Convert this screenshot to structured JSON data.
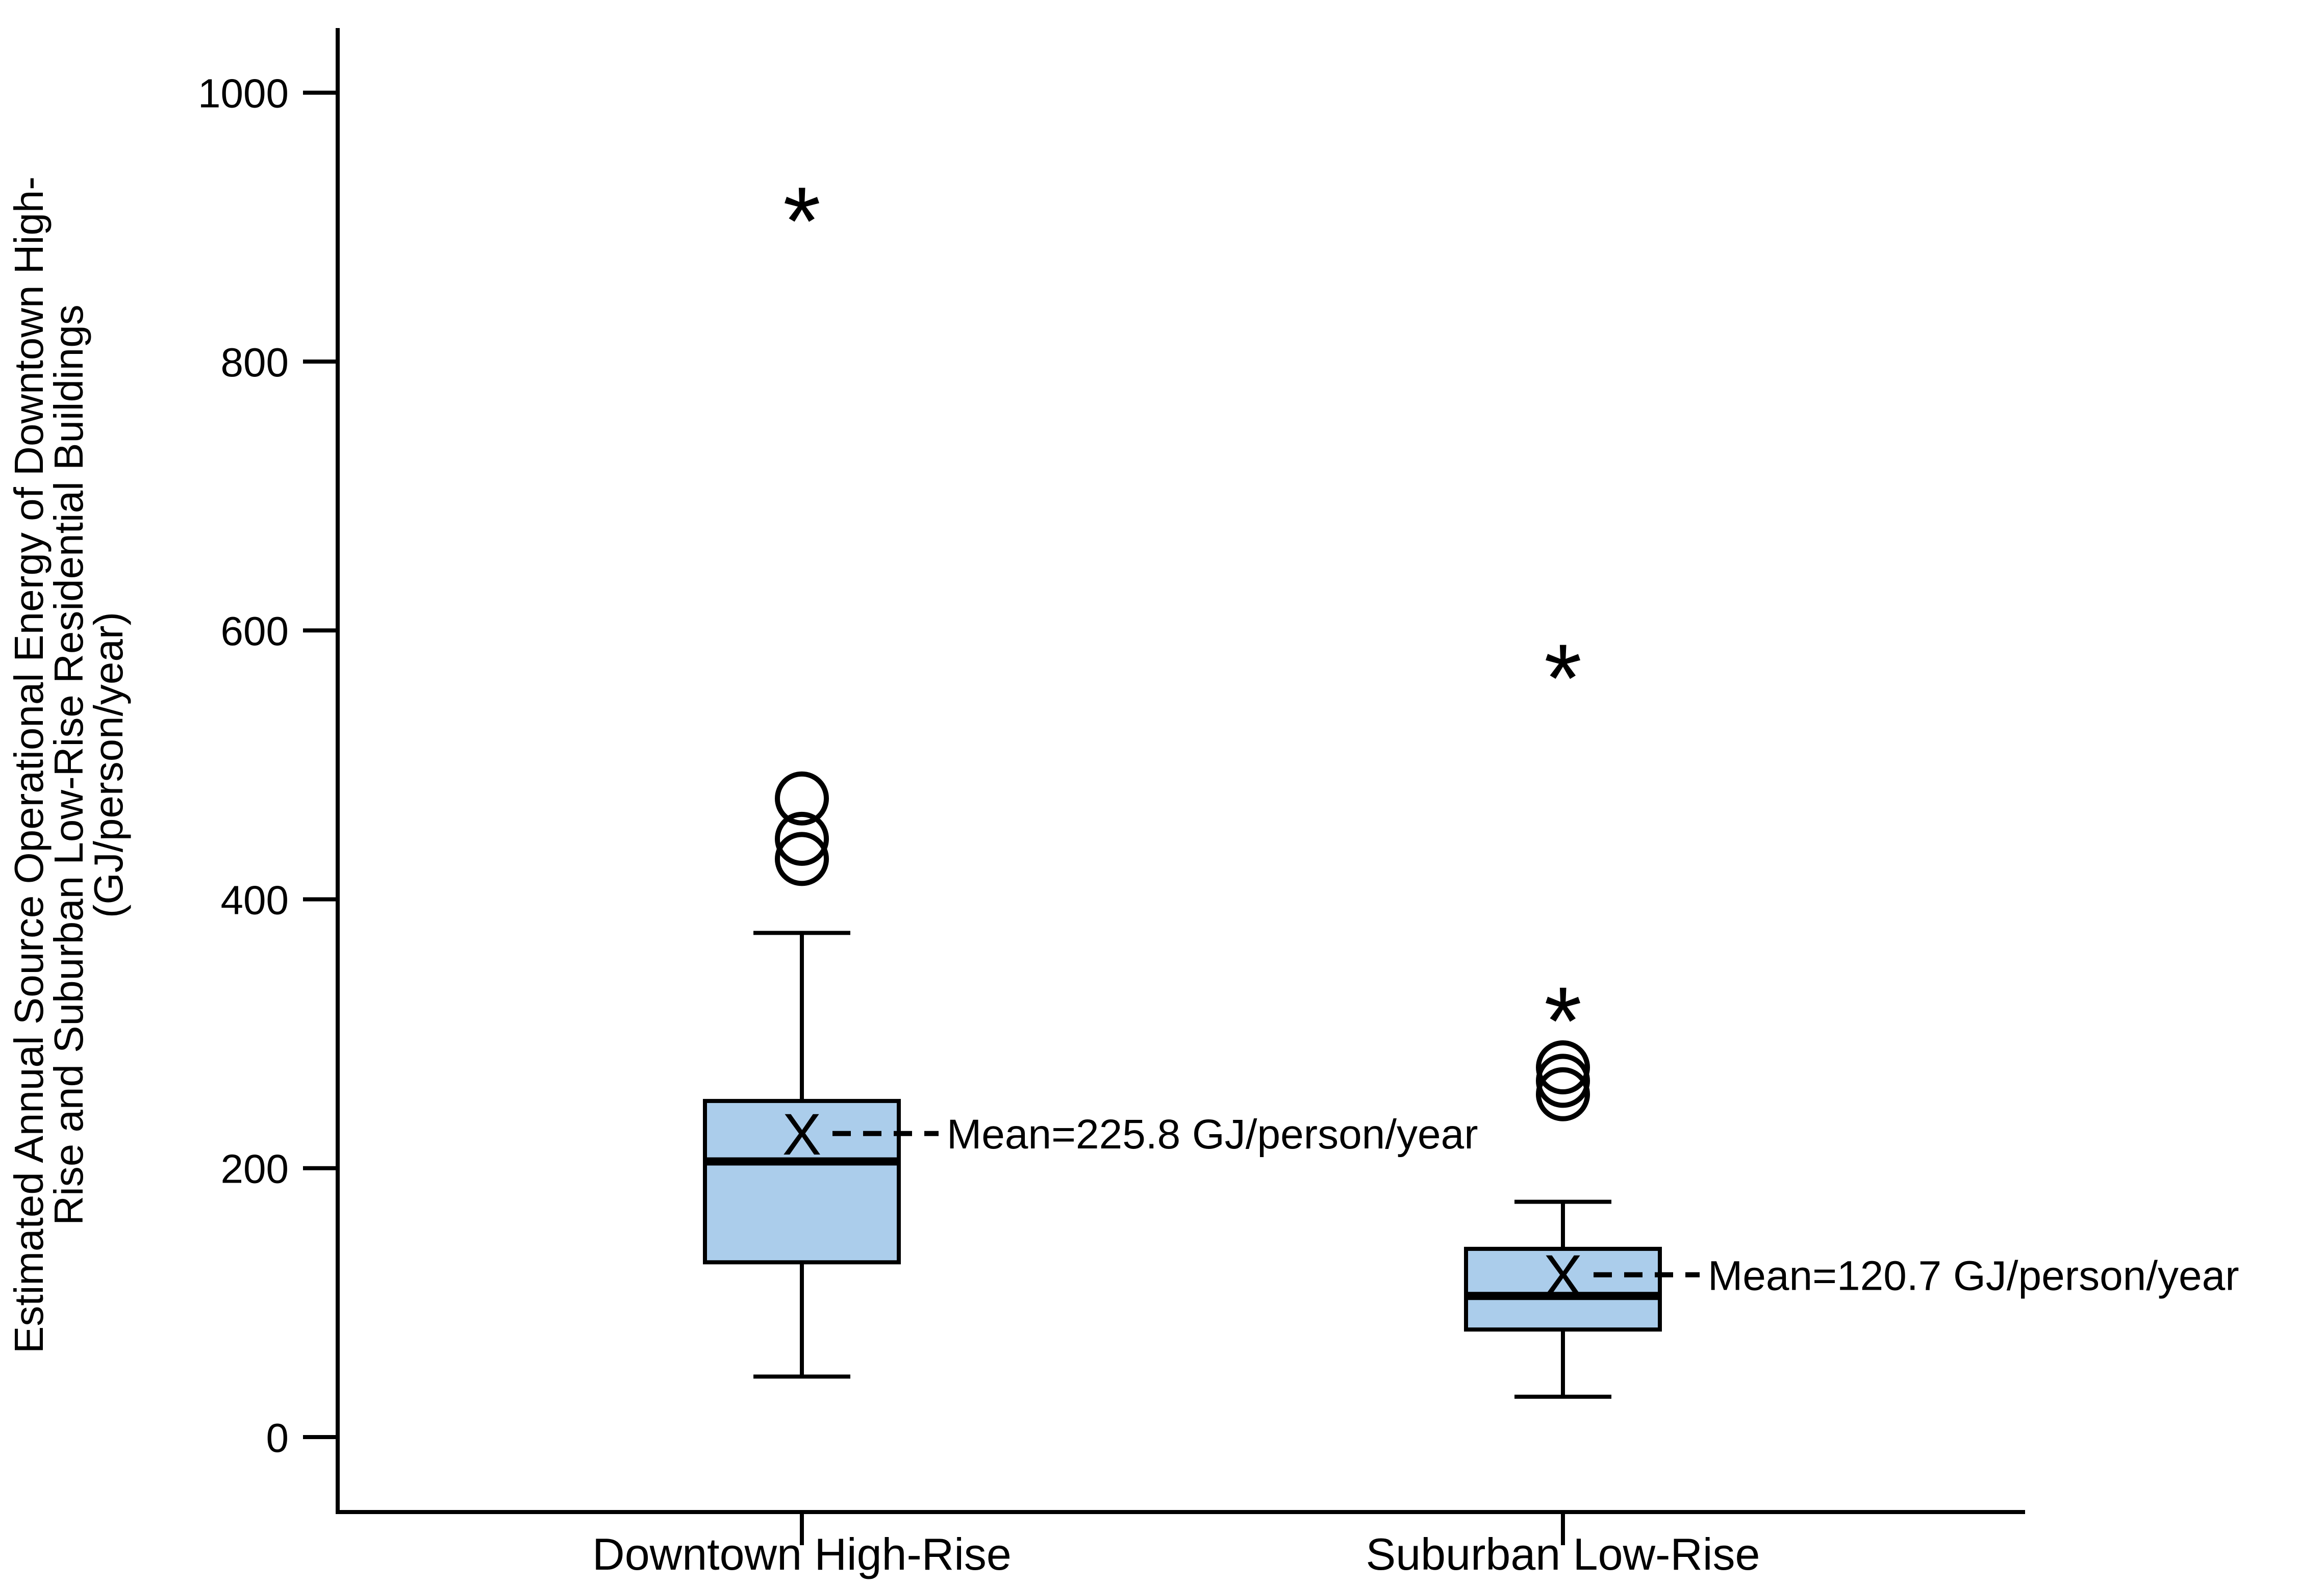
{
  "canvas": {
    "background": "#ffffff"
  },
  "colors": {
    "box_fill": "#abcdeb",
    "line": "#000000",
    "text": "#000000"
  },
  "chart_data": {
    "type": "boxplot",
    "title": "",
    "ylabel_lines": [
      "Estimated Annual Source Operational Energy of Downtown High-",
      "Rise and Suburban Low-Rise Residential Buildings",
      "(GJ/person/year)"
    ],
    "y_axis": {
      "min": 0,
      "max": 1000,
      "tick_interval": 200,
      "ticks": [
        0,
        200,
        400,
        600,
        800,
        1000
      ],
      "grid": false
    },
    "categories": [
      "Downtown High-Rise",
      "Suburban Low-Rise"
    ],
    "series": [
      {
        "name": "Downtown High-Rise",
        "whisker_low": 45,
        "q1": 130,
        "median": 205,
        "q3": 250,
        "whisker_high": 375,
        "mean": 225.8,
        "mean_label": "Mean=225.8 GJ/person/year",
        "outliers_mild": [
          430,
          445,
          475
        ],
        "outliers_extreme": [
          920
        ]
      },
      {
        "name": "Suburban Low-Rise",
        "whisker_low": 30,
        "q1": 80,
        "median": 105,
        "q3": 140,
        "whisker_high": 175,
        "mean": 120.7,
        "mean_label": "Mean=120.7 GJ/person/year",
        "outliers_mild": [
          255,
          265,
          275
        ],
        "outliers_extreme": [
          325,
          580
        ]
      }
    ],
    "markers": {
      "mean": "X",
      "mild_outlier": "circle",
      "extreme_outlier": "asterisk"
    },
    "legend_position": "none"
  }
}
